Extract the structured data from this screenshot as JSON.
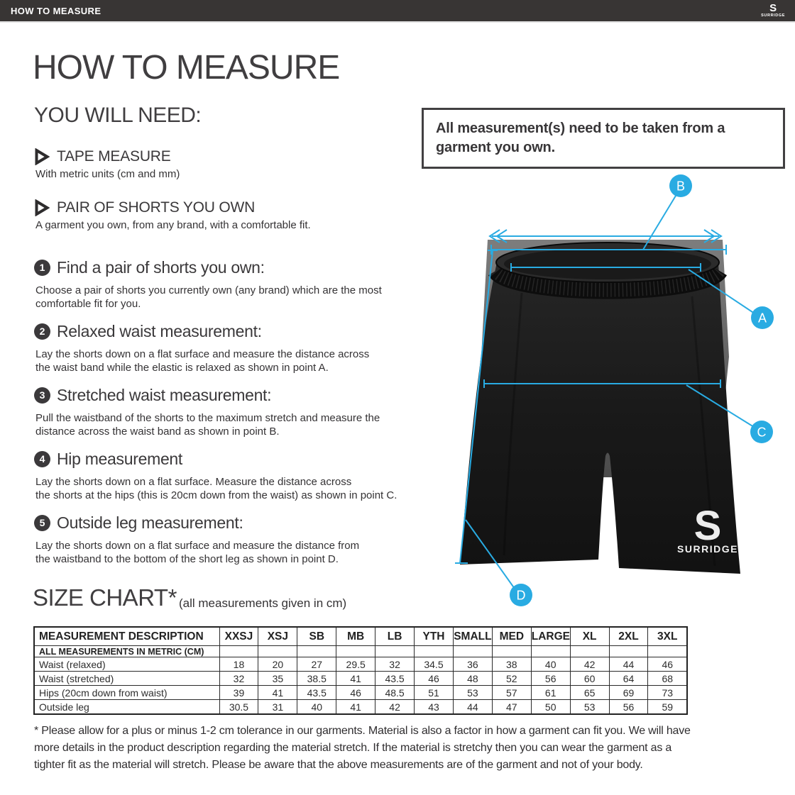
{
  "top_bar": {
    "title": "HOW TO MEASURE",
    "logo_monogram": "S",
    "brand": "SURRIDGE"
  },
  "page_title": "HOW TO MEASURE",
  "you_will_need": {
    "heading": "YOU WILL NEED:",
    "items": [
      {
        "label": "TAPE MEASURE",
        "description": "With metric units (cm and mm)"
      },
      {
        "label": "PAIR OF SHORTS YOU OWN",
        "description": "A garment you own, from any brand, with a comfortable fit."
      }
    ]
  },
  "callout": "All measurement(s) need to be taken from a garment you own.",
  "steps": [
    {
      "number": "1",
      "heading": "Find a pair of shorts you own:",
      "body": [
        "Choose a pair of shorts you currently own (any brand) which are the most",
        "comfortable fit for you."
      ]
    },
    {
      "number": "2",
      "heading": "Relaxed waist measurement:",
      "body": [
        "Lay the shorts down on a flat surface and measure the distance across",
        "the waist band while the elastic is relaxed as shown in point A."
      ]
    },
    {
      "number": "3",
      "heading": "Stretched waist measurement:",
      "body": [
        "Pull the waistband of the shorts to the maximum stretch and measure the",
        "distance across the waist band as shown in point B."
      ]
    },
    {
      "number": "4",
      "heading": "Hip measurement",
      "body": [
        "Lay the shorts down on a flat surface. Measure the distance across",
        "the shorts at the hips (this is 20cm down from the waist)  as shown in point C."
      ]
    },
    {
      "number": "5",
      "heading": "Outside leg measurement:",
      "body": [
        "Lay the shorts down on a flat surface and measure the distance from",
        "the waistband to the bottom of the short leg as shown in point D."
      ]
    }
  ],
  "diagram": {
    "labels": {
      "a": "A",
      "b": "B",
      "c": "C",
      "d": "D"
    },
    "garment_logo_s": "S",
    "garment_logo": "SURRIDGE",
    "accent_color": "#29abe2"
  },
  "size_chart": {
    "heading": "SIZE CHART*",
    "subtitle": "(all measurements given in cm)",
    "table": {
      "header": [
        "MEASUREMENT DESCRIPTION",
        "XXSJ",
        "XSJ",
        "SB",
        "MB",
        "LB",
        "YTH",
        "SMALL",
        "MED",
        "LARGE",
        "XL",
        "2XL",
        "3XL"
      ],
      "note_row": "ALL MEASUREMENTS IN METRIC (CM)",
      "rows": [
        {
          "label": "Waist (relaxed)",
          "values": [
            "18",
            "20",
            "27",
            "29.5",
            "32",
            "34.5",
            "36",
            "38",
            "40",
            "42",
            "44",
            "46"
          ]
        },
        {
          "label": "Waist (stretched)",
          "values": [
            "32",
            "35",
            "38.5",
            "41",
            "43.5",
            "46",
            "48",
            "52",
            "56",
            "60",
            "64",
            "68"
          ]
        },
        {
          "label": "Hips (20cm down from waist)",
          "values": [
            "39",
            "41",
            "43.5",
            "46",
            "48.5",
            "51",
            "53",
            "57",
            "61",
            "65",
            "69",
            "73"
          ]
        },
        {
          "label": "Outside leg",
          "values": [
            "30.5",
            "31",
            "40",
            "41",
            "42",
            "43",
            "44",
            "47",
            "50",
            "53",
            "56",
            "59"
          ]
        }
      ]
    }
  },
  "footnote_lines": [
    "* Please allow for a plus or minus 1-2 cm tolerance in our garments. Material is also a factor in how a garment can fit you. We will have",
    "more details in the product description regarding the material stretch.  If the material is stretchy then you can wear the garment as a",
    "tighter fit as the material will stretch.  Please be aware that the above measurements are of the garment and not of your body."
  ]
}
